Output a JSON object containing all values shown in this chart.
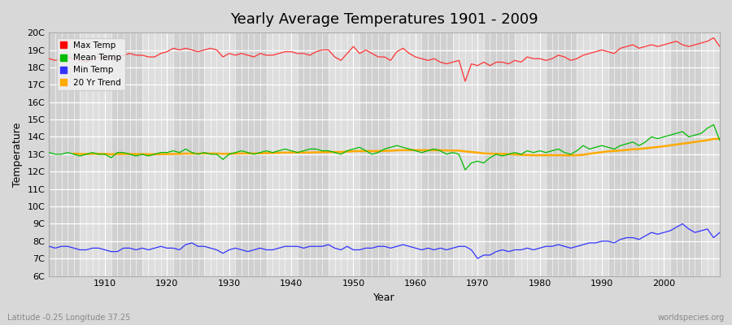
{
  "title": "Yearly Average Temperatures 1901 - 2009",
  "xlabel": "Year",
  "ylabel": "Temperature",
  "footnote_left": "Latitude -0.25 Longitude 37.25",
  "footnote_right": "worldspecies.org",
  "ylim": [
    6,
    20
  ],
  "yticks": [
    6,
    7,
    8,
    9,
    10,
    11,
    12,
    13,
    14,
    15,
    16,
    17,
    18,
    19,
    20
  ],
  "ytick_labels": [
    "6C",
    "7C",
    "8C",
    "9C",
    "10C",
    "11C",
    "12C",
    "13C",
    "14C",
    "15C",
    "16C",
    "17C",
    "18C",
    "19C",
    "20C"
  ],
  "xlim": [
    1901,
    2009
  ],
  "xticks": [
    1910,
    1920,
    1930,
    1940,
    1950,
    1960,
    1970,
    1980,
    1990,
    2000
  ],
  "legend_labels": [
    "Max Temp",
    "Mean Temp",
    "Min Temp",
    "20 Yr Trend"
  ],
  "legend_colors": [
    "#ff0000",
    "#00bb00",
    "#3333ff",
    "#ffaa00"
  ],
  "line_colors": {
    "max": "#ff3333",
    "mean": "#00bb00",
    "min": "#3333ff",
    "trend": "#ffaa00"
  },
  "bg_color": "#d8d8d8",
  "plot_bg_color": "#d8d8d8",
  "stripe_color_dark": "#cccccc",
  "stripe_color_light": "#e0e0e0",
  "grid_color": "#ffffff",
  "years": [
    1901,
    1902,
    1903,
    1904,
    1905,
    1906,
    1907,
    1908,
    1909,
    1910,
    1911,
    1912,
    1913,
    1914,
    1915,
    1916,
    1917,
    1918,
    1919,
    1920,
    1921,
    1922,
    1923,
    1924,
    1925,
    1926,
    1927,
    1928,
    1929,
    1930,
    1931,
    1932,
    1933,
    1934,
    1935,
    1936,
    1937,
    1938,
    1939,
    1940,
    1941,
    1942,
    1943,
    1944,
    1945,
    1946,
    1947,
    1948,
    1949,
    1950,
    1951,
    1952,
    1953,
    1954,
    1955,
    1956,
    1957,
    1958,
    1959,
    1960,
    1961,
    1962,
    1963,
    1964,
    1965,
    1966,
    1967,
    1968,
    1969,
    1970,
    1971,
    1972,
    1973,
    1974,
    1975,
    1976,
    1977,
    1978,
    1979,
    1980,
    1981,
    1982,
    1983,
    1984,
    1985,
    1986,
    1987,
    1988,
    1989,
    1990,
    1991,
    1992,
    1993,
    1994,
    1995,
    1996,
    1997,
    1998,
    1999,
    2000,
    2001,
    2002,
    2003,
    2004,
    2005,
    2006,
    2007,
    2008,
    2009
  ],
  "max_temp": [
    18.5,
    18.4,
    18.5,
    18.6,
    18.5,
    18.4,
    18.3,
    18.5,
    18.6,
    18.5,
    18.5,
    18.6,
    18.7,
    18.8,
    18.7,
    18.7,
    18.6,
    18.6,
    18.8,
    18.9,
    19.1,
    19.0,
    19.1,
    19.0,
    18.9,
    19.0,
    19.1,
    19.0,
    18.6,
    18.8,
    18.7,
    18.8,
    18.7,
    18.6,
    18.8,
    18.7,
    18.7,
    18.8,
    18.9,
    18.9,
    18.8,
    18.8,
    18.7,
    18.9,
    19.0,
    19.0,
    18.6,
    18.4,
    18.8,
    19.2,
    18.8,
    19.0,
    18.8,
    18.6,
    18.6,
    18.4,
    18.9,
    19.1,
    18.8,
    18.6,
    18.5,
    18.4,
    18.5,
    18.3,
    18.2,
    18.3,
    18.4,
    17.2,
    18.2,
    18.1,
    18.3,
    18.1,
    18.3,
    18.3,
    18.2,
    18.4,
    18.3,
    18.6,
    18.5,
    18.5,
    18.4,
    18.5,
    18.7,
    18.6,
    18.4,
    18.5,
    18.7,
    18.8,
    18.9,
    19.0,
    18.9,
    18.8,
    19.1,
    19.2,
    19.3,
    19.1,
    19.2,
    19.3,
    19.2,
    19.3,
    19.4,
    19.5,
    19.3,
    19.2,
    19.3,
    19.4,
    19.5,
    19.7,
    19.2
  ],
  "mean_temp": [
    13.1,
    13.0,
    13.0,
    13.1,
    13.0,
    12.9,
    13.0,
    13.1,
    13.0,
    13.0,
    12.8,
    13.1,
    13.1,
    13.0,
    12.9,
    13.0,
    12.9,
    13.0,
    13.1,
    13.1,
    13.2,
    13.1,
    13.3,
    13.1,
    13.0,
    13.1,
    13.0,
    13.0,
    12.7,
    13.0,
    13.1,
    13.2,
    13.1,
    13.0,
    13.1,
    13.2,
    13.1,
    13.2,
    13.3,
    13.2,
    13.1,
    13.2,
    13.3,
    13.3,
    13.2,
    13.2,
    13.1,
    13.0,
    13.2,
    13.3,
    13.4,
    13.2,
    13.0,
    13.1,
    13.3,
    13.4,
    13.5,
    13.4,
    13.3,
    13.2,
    13.1,
    13.2,
    13.3,
    13.2,
    13.0,
    13.1,
    13.0,
    12.1,
    12.5,
    12.6,
    12.5,
    12.8,
    13.0,
    12.9,
    13.0,
    13.1,
    13.0,
    13.2,
    13.1,
    13.2,
    13.1,
    13.2,
    13.3,
    13.1,
    13.0,
    13.2,
    13.5,
    13.3,
    13.4,
    13.5,
    13.4,
    13.3,
    13.5,
    13.6,
    13.7,
    13.5,
    13.7,
    14.0,
    13.9,
    14.0,
    14.1,
    14.2,
    14.3,
    14.0,
    14.1,
    14.2,
    14.5,
    14.7,
    13.8
  ],
  "min_temp": [
    7.7,
    7.6,
    7.7,
    7.7,
    7.6,
    7.5,
    7.5,
    7.6,
    7.6,
    7.5,
    7.4,
    7.4,
    7.6,
    7.6,
    7.5,
    7.6,
    7.5,
    7.6,
    7.7,
    7.6,
    7.6,
    7.5,
    7.8,
    7.9,
    7.7,
    7.7,
    7.6,
    7.5,
    7.3,
    7.5,
    7.6,
    7.5,
    7.4,
    7.5,
    7.6,
    7.5,
    7.5,
    7.6,
    7.7,
    7.7,
    7.7,
    7.6,
    7.7,
    7.7,
    7.7,
    7.8,
    7.6,
    7.5,
    7.7,
    7.5,
    7.5,
    7.6,
    7.6,
    7.7,
    7.7,
    7.6,
    7.7,
    7.8,
    7.7,
    7.6,
    7.5,
    7.6,
    7.5,
    7.6,
    7.5,
    7.6,
    7.7,
    7.7,
    7.5,
    7.0,
    7.2,
    7.2,
    7.4,
    7.5,
    7.4,
    7.5,
    7.5,
    7.6,
    7.5,
    7.6,
    7.7,
    7.7,
    7.8,
    7.7,
    7.6,
    7.7,
    7.8,
    7.9,
    7.9,
    8.0,
    8.0,
    7.9,
    8.1,
    8.2,
    8.2,
    8.1,
    8.3,
    8.5,
    8.4,
    8.5,
    8.6,
    8.8,
    9.0,
    8.7,
    8.5,
    8.6,
    8.7,
    8.2,
    8.5
  ]
}
